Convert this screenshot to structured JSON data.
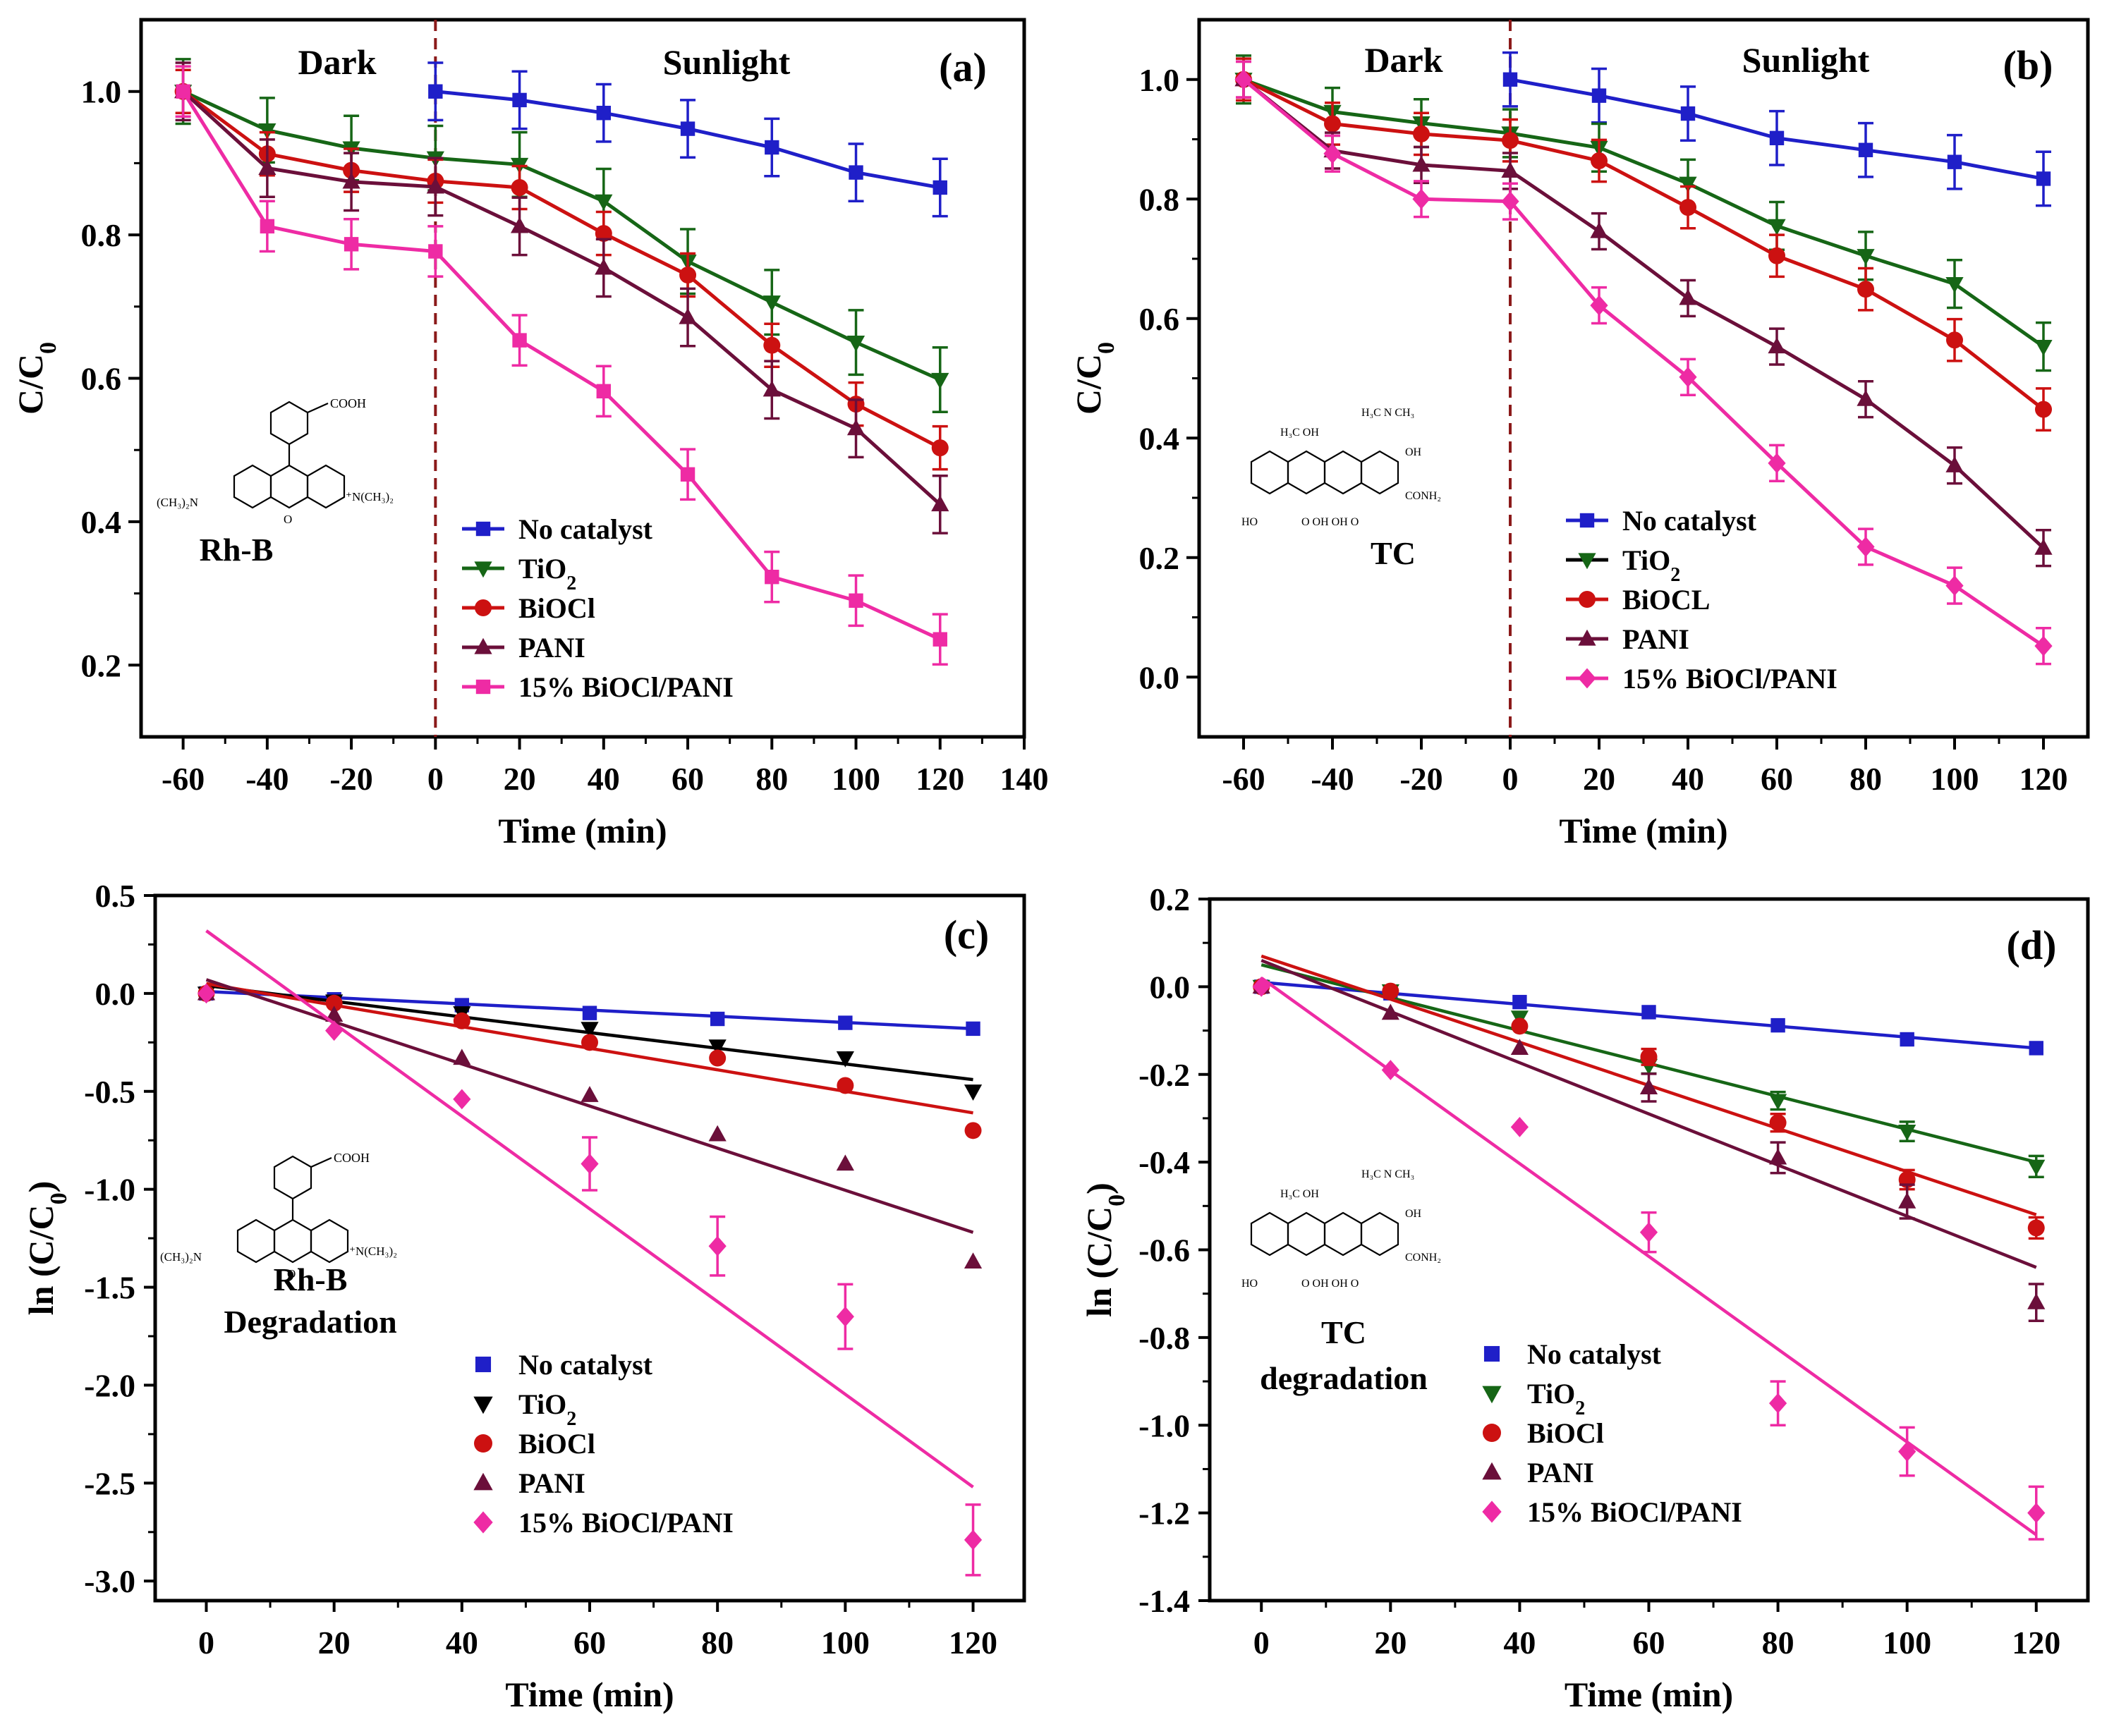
{
  "colors": {
    "No catalyst": "#1f1fc8",
    "TiO2": "#166616",
    "TiO2_c": "#000000",
    "BiOCl": "#cc1111",
    "PANI": "#6b0f3a",
    "15% BiOCl/PANI": "#ee2ba4",
    "divider": "#8b1a1a"
  },
  "chart_data": [
    {
      "id": "a",
      "type": "line",
      "label": "(a)",
      "xlabel": "Time (min)",
      "ylabel": "C/C",
      "ylabel_sub": "0",
      "xlim": [
        -70,
        140
      ],
      "ylim": [
        0.1,
        1.1
      ],
      "xticks": [
        -60,
        -40,
        -20,
        0,
        20,
        40,
        60,
        80,
        100,
        120,
        140
      ],
      "yticks": [
        0.2,
        0.4,
        0.6,
        0.8,
        1.0
      ],
      "ytick_labels": [
        "0.2",
        "0.4",
        "0.6",
        "0.8",
        "1.0"
      ],
      "divider_x": 0,
      "region_labels": [
        "Dark",
        "Sunlight"
      ],
      "molecule": "Rh-B",
      "molecule_caption": [
        "Rh-B"
      ],
      "legend": [
        "No catalyst",
        "TiO",
        "BiOCl",
        "PANI",
        "15% BiOCl/PANI"
      ],
      "series": [
        {
          "name": "No catalyst",
          "marker": "square",
          "x": [
            0,
            20,
            40,
            60,
            80,
            100,
            120
          ],
          "values": [
            1.0,
            0.988,
            0.97,
            0.948,
            0.922,
            0.887,
            0.866
          ],
          "err": 0.04
        },
        {
          "name": "TiO2",
          "marker": "tri-down",
          "x": [
            -60,
            -40,
            -20,
            0,
            20,
            40,
            60,
            80,
            100,
            120
          ],
          "values": [
            1.0,
            0.946,
            0.921,
            0.907,
            0.898,
            0.847,
            0.763,
            0.706,
            0.65,
            0.598
          ],
          "err": 0.045
        },
        {
          "name": "BiOCl",
          "marker": "circle",
          "x": [
            -60,
            -40,
            -20,
            0,
            20,
            40,
            60,
            80,
            100,
            120
          ],
          "values": [
            1.0,
            0.913,
            0.89,
            0.875,
            0.866,
            0.802,
            0.744,
            0.646,
            0.564,
            0.503
          ],
          "err": 0.03
        },
        {
          "name": "PANI",
          "marker": "tri-up",
          "x": [
            -60,
            -40,
            -20,
            0,
            20,
            40,
            60,
            80,
            100,
            120
          ],
          "values": [
            1.0,
            0.893,
            0.874,
            0.867,
            0.812,
            0.754,
            0.685,
            0.584,
            0.53,
            0.424
          ],
          "err": 0.04
        },
        {
          "name": "15% BiOCl/PANI",
          "marker": "square",
          "x": [
            -60,
            -40,
            -20,
            0,
            20,
            40,
            60,
            80,
            100,
            120
          ],
          "values": [
            1.0,
            0.812,
            0.787,
            0.777,
            0.653,
            0.582,
            0.466,
            0.323,
            0.29,
            0.236
          ],
          "err": 0.035
        }
      ]
    },
    {
      "id": "b",
      "type": "line",
      "label": "(b)",
      "xlabel": "Time (min)",
      "ylabel": "C/C",
      "ylabel_sub": "0",
      "xlim": [
        -70,
        130
      ],
      "ylim": [
        -0.1,
        1.1
      ],
      "xticks": [
        -60,
        -40,
        -20,
        0,
        20,
        40,
        60,
        80,
        100,
        120
      ],
      "yticks": [
        0.0,
        0.2,
        0.4,
        0.6,
        0.8,
        1.0
      ],
      "ytick_labels": [
        "0.0",
        "0.2",
        "0.4",
        "0.6",
        "0.8",
        "1.0"
      ],
      "divider_x": 0,
      "region_labels": [
        "Dark",
        "Sunlight"
      ],
      "molecule": "TC",
      "molecule_caption": [
        "TC"
      ],
      "legend": [
        "No catalyst",
        " TiO",
        "BiOCL",
        "PANI",
        "15% BiOCl/PANI"
      ],
      "series": [
        {
          "name": "No catalyst",
          "marker": "square",
          "x": [
            0,
            20,
            40,
            60,
            80,
            100,
            120
          ],
          "values": [
            1.0,
            0.973,
            0.943,
            0.902,
            0.882,
            0.862,
            0.834
          ],
          "err": 0.045
        },
        {
          "name": "TiO2",
          "marker": "tri-down",
          "x": [
            -60,
            -40,
            -20,
            0,
            20,
            40,
            60,
            80,
            100,
            120
          ],
          "values": [
            1.0,
            0.946,
            0.927,
            0.91,
            0.886,
            0.826,
            0.755,
            0.705,
            0.658,
            0.553
          ],
          "err": 0.04
        },
        {
          "name": "BiOCl",
          "marker": "circle",
          "x": [
            -60,
            -40,
            -20,
            0,
            20,
            40,
            60,
            80,
            100,
            120
          ],
          "values": [
            1.0,
            0.926,
            0.909,
            0.898,
            0.864,
            0.786,
            0.705,
            0.649,
            0.564,
            0.448
          ],
          "err": 0.035
        },
        {
          "name": "PANI",
          "marker": "tri-up",
          "x": [
            -60,
            -40,
            -20,
            0,
            20,
            40,
            60,
            80,
            100,
            120
          ],
          "values": [
            1.0,
            0.881,
            0.857,
            0.847,
            0.746,
            0.634,
            0.553,
            0.465,
            0.354,
            0.216
          ],
          "err": 0.03
        },
        {
          "name": "15% BiOCl/PANI",
          "marker": "diamond",
          "x": [
            -60,
            -40,
            -20,
            0,
            20,
            40,
            60,
            80,
            100,
            120
          ],
          "values": [
            1.0,
            0.876,
            0.8,
            0.796,
            0.622,
            0.502,
            0.358,
            0.218,
            0.153,
            0.052
          ],
          "err": 0.03
        }
      ]
    },
    {
      "id": "c",
      "type": "scatter",
      "label": "(c)",
      "xlabel": "Time (min)",
      "ylabel": "ln (C/C",
      "ylabel_sub": "0",
      "ylabel_end": ")",
      "xlim": [
        -8,
        128
      ],
      "ylim": [
        -3.1,
        0.5
      ],
      "xticks": [
        0,
        20,
        40,
        60,
        80,
        100,
        120
      ],
      "yticks": [
        0.5,
        0.0,
        -0.5,
        -1.0,
        -1.5,
        -2.0,
        -2.5,
        -3.0
      ],
      "ytick_labels": [
        "0.5",
        "0.0",
        "-0.5",
        "-1.0",
        "-1.5",
        "-2.0",
        "-2.5",
        "-3.0"
      ],
      "molecule": "Rh-B",
      "molecule_caption": [
        "Rh-B",
        "Degradation"
      ],
      "legend": [
        "No catalyst",
        "TiO",
        "BiOCl",
        "PANI",
        "15% BiOCl/PANI"
      ],
      "series": [
        {
          "name": "No catalyst",
          "marker": "square",
          "x": [
            0,
            20,
            40,
            60,
            80,
            100,
            120
          ],
          "values": [
            0.0,
            -0.03,
            -0.06,
            -0.1,
            -0.13,
            -0.15,
            -0.18
          ],
          "fit": [
            0.01,
            -0.18
          ],
          "err": 0
        },
        {
          "name": "TiO2",
          "marker": "tri-down",
          "x": [
            0,
            20,
            40,
            60,
            80,
            100,
            120
          ],
          "values": [
            0.0,
            -0.04,
            -0.1,
            -0.18,
            -0.27,
            -0.33,
            -0.5
          ],
          "fit": [
            0.04,
            -0.44
          ],
          "err": 0
        },
        {
          "name": "BiOCl",
          "marker": "circle",
          "x": [
            0,
            20,
            40,
            60,
            80,
            100,
            120
          ],
          "values": [
            0.0,
            -0.05,
            -0.14,
            -0.25,
            -0.33,
            -0.47,
            -0.7
          ],
          "fit": [
            0.05,
            -0.61
          ],
          "err": 0
        },
        {
          "name": "PANI",
          "marker": "tri-up",
          "x": [
            0,
            20,
            40,
            60,
            80,
            100,
            120
          ],
          "values": [
            0.0,
            -0.11,
            -0.33,
            -0.52,
            -0.72,
            -0.87,
            -1.37
          ],
          "fit": [
            0.07,
            -1.22
          ],
          "err": 0
        },
        {
          "name": "15% BiOCl/PANI",
          "marker": "diamond",
          "x": [
            0,
            20,
            40,
            60,
            80,
            100,
            120
          ],
          "values": [
            0.0,
            -0.19,
            -0.54,
            -0.87,
            -1.29,
            -1.65,
            -2.79
          ],
          "fit": [
            0.32,
            -2.52
          ],
          "err": 0.15
        }
      ]
    },
    {
      "id": "d",
      "type": "scatter",
      "label": "(d)",
      "xlabel": "Time (min)",
      "ylabel": "ln (C/C",
      "ylabel_sub": "0",
      "ylabel_end": ")",
      "xlim": [
        -8,
        128
      ],
      "ylim": [
        -1.4,
        0.2
      ],
      "xticks": [
        0,
        20,
        40,
        60,
        80,
        100,
        120
      ],
      "yticks": [
        0.2,
        0.0,
        -0.2,
        -0.4,
        -0.6,
        -0.8,
        -1.0,
        -1.2,
        -1.4
      ],
      "ytick_labels": [
        "0.2",
        "0.0",
        "-0.2",
        "-0.4",
        "-0.6",
        "-0.8",
        "-1.0",
        "-1.2",
        "-1.4"
      ],
      "molecule": "TC",
      "molecule_caption": [
        "TC",
        "degradation"
      ],
      "legend": [
        "No catalyst",
        "TiO",
        "BiOCl",
        "PANI",
        "15% BiOCl/PANI"
      ],
      "series": [
        {
          "name": "No catalyst",
          "marker": "square",
          "x": [
            0,
            20,
            40,
            60,
            80,
            100,
            120
          ],
          "values": [
            0.0,
            -0.015,
            -0.035,
            -0.058,
            -0.088,
            -0.12,
            -0.14
          ],
          "fit": [
            0.01,
            -0.14
          ],
          "err": 0
        },
        {
          "name": "TiO2",
          "marker": "tri-down",
          "x": [
            0,
            20,
            40,
            60,
            80,
            100,
            120
          ],
          "values": [
            0.0,
            -0.01,
            -0.07,
            -0.18,
            -0.26,
            -0.33,
            -0.41
          ],
          "fit": [
            0.05,
            -0.4
          ],
          "err": 0.02
        },
        {
          "name": "BiOCl",
          "marker": "circle",
          "x": [
            0,
            20,
            40,
            60,
            80,
            100,
            120
          ],
          "values": [
            0.0,
            -0.01,
            -0.09,
            -0.16,
            -0.31,
            -0.44,
            -0.55
          ],
          "fit": [
            0.07,
            -0.52
          ],
          "err": 0.02
        },
        {
          "name": "PANI",
          "marker": "tri-up",
          "x": [
            0,
            20,
            40,
            60,
            80,
            100,
            120
          ],
          "values": [
            0.0,
            -0.06,
            -0.14,
            -0.23,
            -0.39,
            -0.49,
            -0.72
          ],
          "fit": [
            0.06,
            -0.64
          ],
          "err": 0.035
        },
        {
          "name": "15% BiOCl/PANI",
          "marker": "diamond",
          "x": [
            0,
            20,
            40,
            60,
            80,
            100,
            120
          ],
          "values": [
            0.0,
            -0.19,
            -0.32,
            -0.56,
            -0.95,
            -1.06,
            -1.2
          ],
          "fit": [
            0.02,
            -1.25
          ],
          "err": 0.05
        }
      ]
    }
  ]
}
